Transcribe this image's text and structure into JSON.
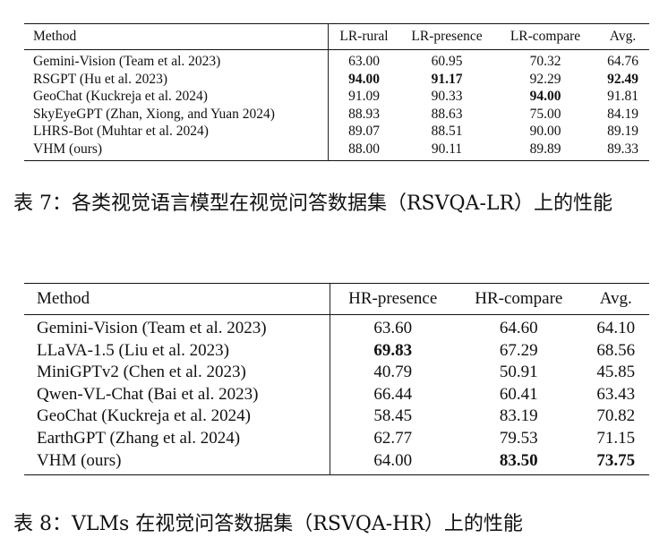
{
  "table1": {
    "headers": [
      "Method",
      "LR-rural",
      "LR-presence",
      "LR-compare",
      "Avg."
    ],
    "rows": [
      {
        "method": "Gemini-Vision (Team et al. 2023)",
        "v1": "63.00",
        "v2": "60.95",
        "v3": "70.32",
        "v4": "64.76"
      },
      {
        "method": "RSGPT (Hu et al. 2023)",
        "v1": "94.00",
        "v2": "91.17",
        "v3": "92.29",
        "v4": "92.49"
      },
      {
        "method": "GeoChat (Kuckreja et al. 2024)",
        "v1": "91.09",
        "v2": "90.33",
        "v3": "94.00",
        "v4": "91.81"
      },
      {
        "method": "SkyEyeGPT (Zhan, Xiong, and Yuan 2024)",
        "v1": "88.93",
        "v2": "88.63",
        "v3": "75.00",
        "v4": "84.19"
      },
      {
        "method": "LHRS-Bot (Muhtar et al. 2024)",
        "v1": "89.07",
        "v2": "88.51",
        "v3": "90.00",
        "v4": "89.19"
      },
      {
        "method": "VHM (ours)",
        "v1": "88.00",
        "v2": "90.11",
        "v3": "89.89",
        "v4": "89.33"
      }
    ],
    "caption": "表 7：各类视觉语言模型在视觉问答数据集（RSVQA-LR）上的性能"
  },
  "table2": {
    "headers": [
      "Method",
      "HR-presence",
      "HR-compare",
      "Avg."
    ],
    "rows": [
      {
        "method": "Gemini-Vision (Team et al. 2023)",
        "v1": "63.60",
        "v2": "64.60",
        "v3": "64.10"
      },
      {
        "method": "LLaVA-1.5 (Liu et al. 2023)",
        "v1": "69.83",
        "v2": "67.29",
        "v3": "68.56"
      },
      {
        "method": "MiniGPTv2 (Chen et al. 2023)",
        "v1": "40.79",
        "v2": "50.91",
        "v3": "45.85"
      },
      {
        "method": "Qwen-VL-Chat (Bai et al. 2023)",
        "v1": "66.44",
        "v2": "60.41",
        "v3": "63.43"
      },
      {
        "method": "GeoChat (Kuckreja et al. 2024)",
        "v1": "58.45",
        "v2": "83.19",
        "v3": "70.82"
      },
      {
        "method": "EarthGPT (Zhang et al. 2024)",
        "v1": "62.77",
        "v2": "79.53",
        "v3": "71.15"
      },
      {
        "method": "VHM (ours)",
        "v1": "64.00",
        "v2": "83.50",
        "v3": "73.75"
      }
    ],
    "caption": "表 8：VLMs 在视觉问答数据集（RSVQA-HR）上的性能"
  }
}
